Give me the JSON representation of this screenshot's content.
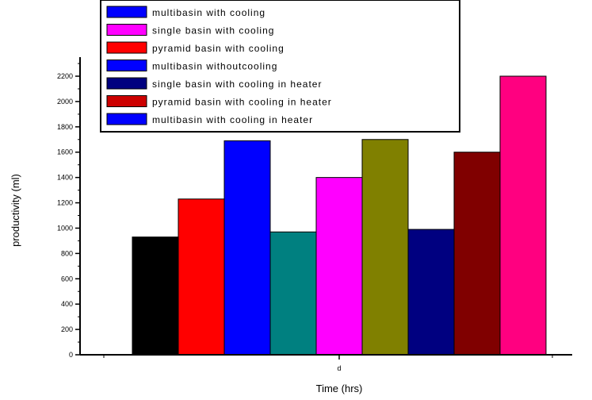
{
  "chart_data": {
    "type": "bar",
    "categories": [
      "d"
    ],
    "xlabel": "Time (hrs)",
    "ylabel": "productivity (ml)",
    "ylim": [
      0,
      2400
    ],
    "y_ticks": [
      "0",
      "200",
      "400",
      "600",
      "800",
      "1000",
      "1200",
      "1400",
      "1600",
      "1800",
      "2000",
      "2200"
    ],
    "series": [
      {
        "name": "",
        "color": "#000000",
        "values": [
          930
        ]
      },
      {
        "name": "",
        "color": "#ff0000",
        "values": [
          1230
        ]
      },
      {
        "name": "",
        "color": "#0000ff",
        "values": [
          1690
        ]
      },
      {
        "name": "",
        "color": "#008080",
        "values": [
          970
        ]
      },
      {
        "name": "",
        "color": "#ff00ff",
        "values": [
          1400
        ]
      },
      {
        "name": "",
        "color": "#808000",
        "values": [
          1700
        ]
      },
      {
        "name": "",
        "color": "#000080",
        "values": [
          990
        ]
      },
      {
        "name": "",
        "color": "#800000",
        "values": [
          1600
        ]
      },
      {
        "name": "",
        "color": "#ff0080",
        "values": [
          2200
        ]
      }
    ],
    "legend": {
      "placement": "top",
      "entries": [
        {
          "label": "multibasin with cooling",
          "color": "#0000ff"
        },
        {
          "label": "single basin with cooling",
          "color": "#ff00ff"
        },
        {
          "label": "pyramid basin with cooling",
          "color": "#ff0000"
        },
        {
          "label": "multibasin withoutcooling",
          "color": "#0000ff"
        },
        {
          "label": "single basin with cooling in heater",
          "color": "#000080"
        },
        {
          "label": "pyramid basin with cooling in heater",
          "color": "#cc0000"
        },
        {
          "label": "multibasin with cooling in heater",
          "color": "#0000ff"
        }
      ]
    },
    "grid": false
  }
}
